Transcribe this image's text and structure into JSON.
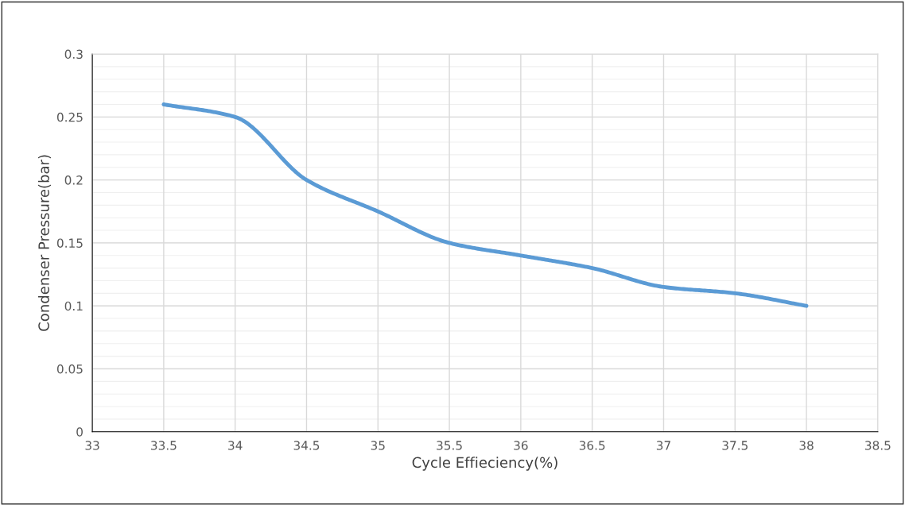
{
  "chart_data": {
    "type": "line",
    "xlabel": "Cycle Effieciency(%)",
    "ylabel": "Condenser Pressure(bar)",
    "x": [
      33.5,
      34,
      34.5,
      35,
      35.5,
      36,
      36.5,
      37,
      37.5,
      38
    ],
    "series": [
      {
        "color": "#5b9bd5",
        "values": [
          0.26,
          0.25,
          0.2,
          0.175,
          0.15,
          0.14,
          0.13,
          0.115,
          0.11,
          0.1
        ]
      }
    ],
    "xlim": [
      33,
      38.5
    ],
    "xticks": [
      33,
      33.5,
      34,
      34.5,
      35,
      35.5,
      36,
      36.5,
      37,
      37.5,
      38,
      38.5
    ],
    "ylim": [
      0,
      0.3
    ],
    "yticks": [
      0,
      0.05,
      0.1,
      0.15,
      0.2,
      0.25,
      0.3
    ],
    "grid": true,
    "marker": "none",
    "line_style": "solid",
    "legend": false
  }
}
